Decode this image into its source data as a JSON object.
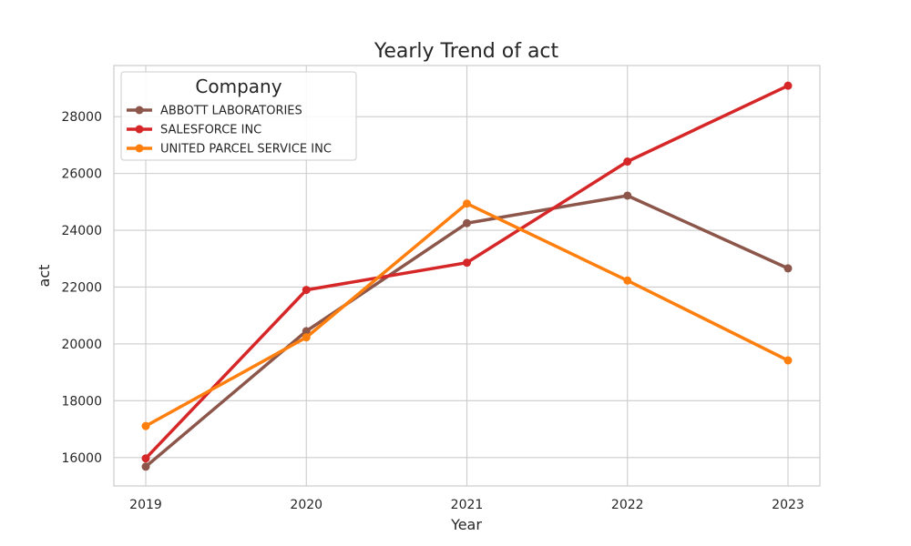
{
  "chart_data": {
    "type": "line",
    "title": "Yearly Trend of act",
    "xlabel": "Year",
    "ylabel": "act",
    "categories": [
      "2019",
      "2020",
      "2021",
      "2022",
      "2023"
    ],
    "ylim": [
      15000,
      29800
    ],
    "yticks": [
      16000,
      18000,
      20000,
      22000,
      24000,
      26000,
      28000
    ],
    "ytick_labels": [
      "16000",
      "18000",
      "20000",
      "22000",
      "24000",
      "26000",
      "28000"
    ],
    "grid": true,
    "legend": {
      "title": "Company",
      "position": "top-left"
    },
    "series": [
      {
        "name": "ABBOTT LABORATORIES",
        "color": "#8c564b",
        "values": [
          15680,
          20450,
          24250,
          25220,
          22660
        ]
      },
      {
        "name": "SALESFORCE INC",
        "color": "#d62728",
        "values": [
          15970,
          21900,
          22860,
          26420,
          29090
        ]
      },
      {
        "name": "UNITED PARCEL SERVICE INC",
        "color": "#ff7f0e",
        "values": [
          17110,
          20230,
          24940,
          22230,
          19420
        ]
      }
    ]
  }
}
